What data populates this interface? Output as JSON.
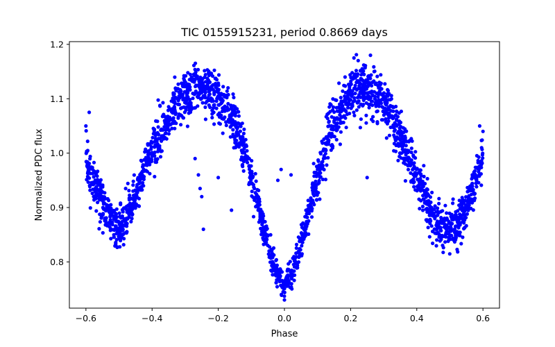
{
  "chart_data": {
    "type": "scatter",
    "title": "TIC 0155915231, period 0.8669 days",
    "xlabel": "Phase",
    "ylabel": "Normalized PDC flux",
    "xlim": [
      -0.65,
      0.65
    ],
    "ylim": [
      0.715,
      1.205
    ],
    "xticks": [
      -0.6,
      -0.4,
      -0.2,
      0.0,
      0.2,
      0.4,
      0.6
    ],
    "xtick_labels": [
      "−0.6",
      "−0.4",
      "−0.2",
      "0.0",
      "0.2",
      "0.4",
      "0.6"
    ],
    "yticks": [
      0.8,
      0.9,
      1.0,
      1.1,
      1.2
    ],
    "ytick_labels": [
      "0.8",
      "0.9",
      "1.0",
      "1.1",
      "1.2"
    ],
    "grid": false,
    "marker_color": "#0000ff",
    "series": [
      {
        "x": [
          -0.6,
          -0.58,
          -0.56,
          -0.54,
          -0.52,
          -0.5,
          -0.48,
          -0.46,
          -0.44,
          -0.42,
          -0.4,
          -0.38,
          -0.36,
          -0.34,
          -0.32,
          -0.3,
          -0.28,
          -0.26,
          -0.24,
          -0.22,
          -0.2,
          -0.18,
          -0.16,
          -0.14,
          -0.12,
          -0.1,
          -0.08,
          -0.06,
          -0.04,
          -0.02,
          0.0,
          0.02,
          0.04,
          0.06,
          0.08,
          0.1,
          0.12,
          0.14,
          0.16,
          0.18,
          0.2,
          0.22,
          0.24,
          0.26,
          0.28,
          0.3,
          0.32,
          0.34,
          0.36,
          0.38,
          0.4,
          0.42,
          0.44,
          0.46,
          0.48,
          0.5,
          0.52,
          0.54,
          0.56,
          0.58,
          0.6
        ],
        "y": [
          0.99,
          0.955,
          0.925,
          0.895,
          0.87,
          0.86,
          0.875,
          0.905,
          0.94,
          0.975,
          1.005,
          1.03,
          1.055,
          1.075,
          1.09,
          1.1,
          1.11,
          1.115,
          1.115,
          1.11,
          1.1,
          1.085,
          1.065,
          1.035,
          1.0,
          0.955,
          0.905,
          0.855,
          0.81,
          0.775,
          0.76,
          0.775,
          0.81,
          0.855,
          0.905,
          0.955,
          1.0,
          1.04,
          1.07,
          1.095,
          1.11,
          1.12,
          1.12,
          1.115,
          1.105,
          1.09,
          1.07,
          1.045,
          1.015,
          0.985,
          0.955,
          0.925,
          0.895,
          0.87,
          0.86,
          0.855,
          0.865,
          0.89,
          0.92,
          0.955,
          0.99
        ],
        "spread": [
          0.035,
          0.035,
          0.035,
          0.035,
          0.035,
          0.035,
          0.035,
          0.035,
          0.035,
          0.035,
          0.04,
          0.04,
          0.04,
          0.04,
          0.04,
          0.04,
          0.04,
          0.04,
          0.04,
          0.04,
          0.04,
          0.04,
          0.04,
          0.035,
          0.035,
          0.035,
          0.03,
          0.025,
          0.025,
          0.02,
          0.02,
          0.02,
          0.025,
          0.025,
          0.03,
          0.035,
          0.035,
          0.04,
          0.04,
          0.04,
          0.04,
          0.04,
          0.04,
          0.04,
          0.04,
          0.04,
          0.04,
          0.04,
          0.04,
          0.04,
          0.035,
          0.035,
          0.035,
          0.035,
          0.035,
          0.035,
          0.035,
          0.035,
          0.035,
          0.035,
          0.035
        ]
      },
      {
        "x": [
          -0.26,
          -0.255,
          -0.25,
          -0.245,
          -0.2,
          -0.16,
          -0.27,
          -0.01,
          0.0,
          -0.02,
          0.02,
          0.21,
          0.26,
          0.25,
          -0.48,
          -0.6,
          -0.59,
          0.59,
          0.6
        ],
        "y": [
          0.96,
          0.935,
          0.92,
          0.86,
          0.955,
          0.895,
          0.99,
          0.97,
          0.73,
          0.95,
          0.96,
          1.175,
          1.18,
          0.955,
          0.935,
          1.05,
          1.075,
          1.05,
          1.04
        ]
      }
    ]
  }
}
